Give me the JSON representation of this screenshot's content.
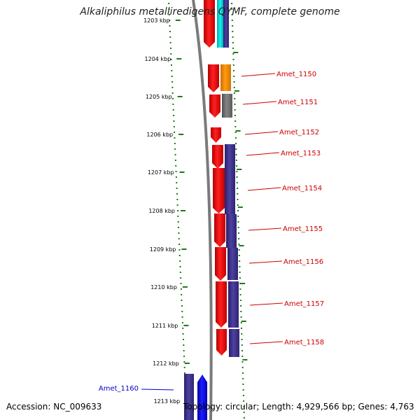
{
  "title": "Alkaliphilus metalliredigens QYMF, complete genome",
  "footer": {
    "accession": "Accession: NC_009633",
    "summary": "Topology: circular; Length: 4,929,566 bp; Genes: 4,763"
  },
  "ticks": [
    "1203 kbp",
    "1204 kbp",
    "1205 kbp",
    "1206 kbp",
    "1207 kbp",
    "1208 kbp",
    "1209 kbp",
    "1210 kbp",
    "1211 kbp",
    "1212 kbp",
    "1213 kbp"
  ],
  "genes": [
    {
      "label": "Amet_1150",
      "category_color": "#ff8c00"
    },
    {
      "label": "Amet_1151",
      "category_color": "#707070"
    },
    {
      "label": "Amet_1152",
      "category_color": "#ff0000"
    },
    {
      "label": "Amet_1153",
      "category_color": "#3c2f8a"
    },
    {
      "label": "Amet_1154",
      "category_color": "#3c2f8a"
    },
    {
      "label": "Amet_1155",
      "category_color": "#3c2f8a"
    },
    {
      "label": "Amet_1156",
      "category_color": "#3c2f8a"
    },
    {
      "label": "Amet_1157",
      "category_color": "#3c2f8a"
    },
    {
      "label": "Amet_1158",
      "category_color": "#3c2f8a"
    },
    {
      "label": "Amet_1160",
      "category_color": "#0000ee"
    }
  ],
  "colors": {
    "gene_red": "#ff0000",
    "label_red": "#cc0000",
    "label_blue": "#0000cc",
    "purple": "#3c2f8a",
    "tick_green": "#1a7a1a",
    "backbone": "#808080"
  }
}
